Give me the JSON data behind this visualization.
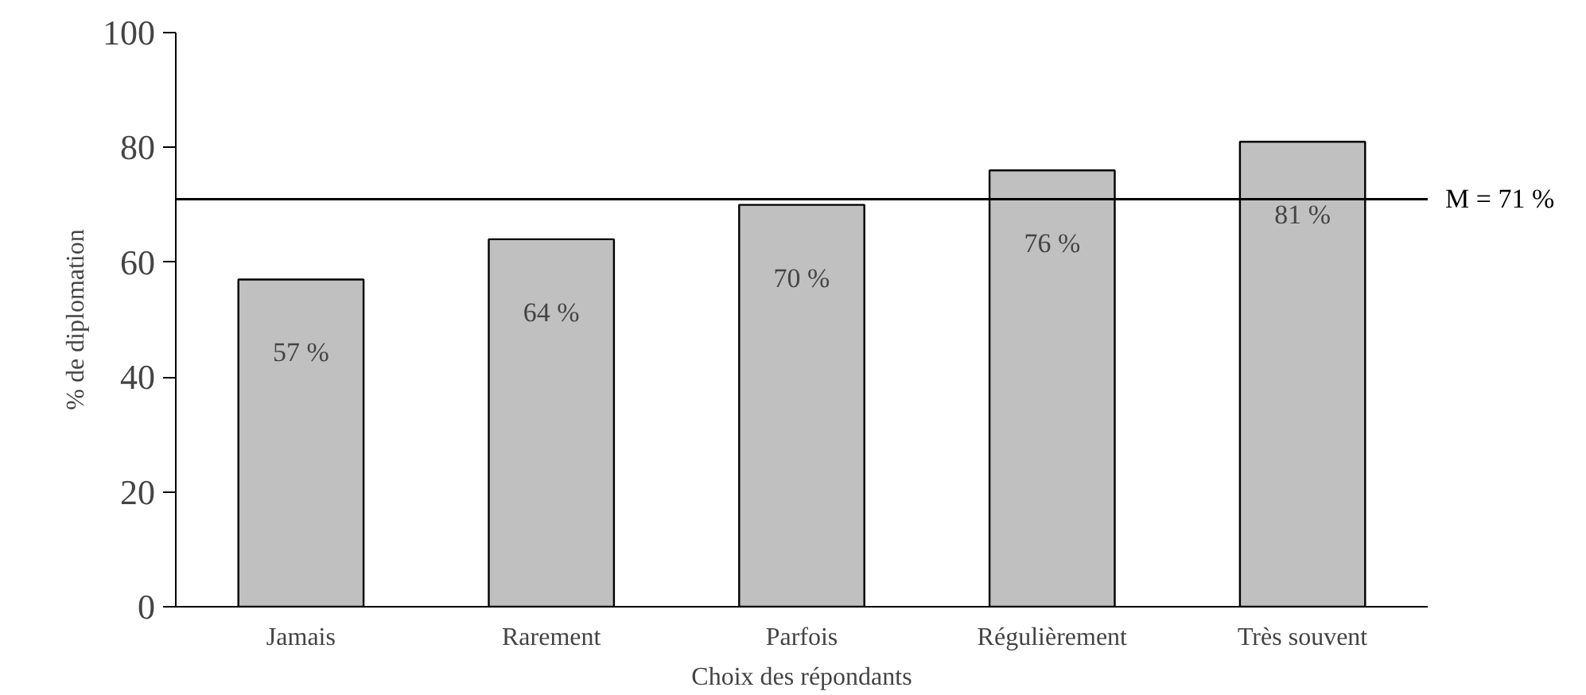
{
  "chart_data": {
    "type": "bar",
    "xlabel": "Choix des répondants",
    "ylabel": "% de diplomation",
    "categories": [
      "Jamais",
      "Rarement",
      "Parfois",
      "Régulièrement",
      "Très souvent"
    ],
    "values": [
      57,
      64,
      70,
      76,
      81
    ],
    "value_labels": [
      "57 %",
      "64 %",
      "70 %",
      "76 %",
      "81 %"
    ],
    "color": "#c0c0c0",
    "ylim": [
      0,
      100
    ],
    "yticks": [
      0,
      20,
      40,
      60,
      80,
      100
    ],
    "grid": false,
    "ref_lines": [
      {
        "axis": "y",
        "value": 71,
        "label": "M = 71 %",
        "color": "#000000"
      }
    ]
  }
}
